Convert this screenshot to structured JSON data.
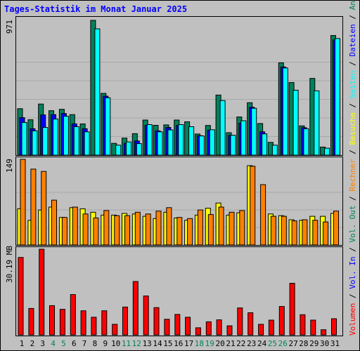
{
  "title": "Tages-Statistik im Monat Januar 2025",
  "colors": {
    "background": "#c0c0c0",
    "title": "#0000ff",
    "anfragen": "#00805c",
    "dateien": "#0000ff",
    "seiten": "#00ffff",
    "besuche": "#ffff00",
    "rechner": "#ff8000",
    "volumen": "#ff0000",
    "weekday_label": "#000000",
    "weekend_label": "#00805c"
  },
  "chart_data": [
    {
      "type": "bar",
      "panel": "top",
      "ymax_label": "971",
      "ylim": [
        0,
        971
      ],
      "categories": [
        "1",
        "2",
        "3",
        "4",
        "5",
        "6",
        "7",
        "8",
        "9",
        "10",
        "11",
        "12",
        "13",
        "14",
        "15",
        "16",
        "17",
        "18",
        "19",
        "20",
        "21",
        "22",
        "23",
        "24",
        "25",
        "26",
        "27",
        "28",
        "29",
        "30",
        "31"
      ],
      "weekend_days": [
        "4",
        "5",
        "11",
        "12",
        "18",
        "19",
        "25",
        "26"
      ],
      "series": [
        {
          "name": "Anfragen",
          "values": [
            335,
            255,
            368,
            320,
            330,
            292,
            225,
            971,
            445,
            85,
            123,
            155,
            253,
            215,
            218,
            253,
            240,
            152,
            214,
            433,
            162,
            275,
            378,
            228,
            92,
            665,
            523,
            211,
            553,
            58,
            862
          ]
        },
        {
          "name": "Dateien",
          "values": [
            270,
            190,
            290,
            292,
            300,
            225,
            190,
            0,
            425,
            0,
            85,
            102,
            215,
            175,
            200,
            215,
            0,
            140,
            180,
            0,
            143,
            230,
            345,
            168,
            0,
            635,
            0,
            198,
            0,
            0,
            830
          ]
        },
        {
          "name": "Seiten",
          "values": [
            235,
            175,
            200,
            260,
            280,
            205,
            168,
            910,
            413,
            72,
            95,
            83,
            220,
            168,
            182,
            220,
            205,
            138,
            183,
            393,
            143,
            248,
            338,
            153,
            72,
            628,
            468,
            190,
            463,
            50,
            840
          ]
        }
      ],
      "legend": [
        "Anfragen",
        "Dateien",
        "Seiten"
      ]
    },
    {
      "type": "bar",
      "panel": "middle",
      "ymax_label": "149",
      "ylim": [
        0,
        149
      ],
      "categories": [
        "1",
        "2",
        "3",
        "4",
        "5",
        "6",
        "7",
        "8",
        "9",
        "10",
        "11",
        "12",
        "13",
        "14",
        "15",
        "16",
        "17",
        "18",
        "19",
        "20",
        "21",
        "22",
        "23",
        "24",
        "25",
        "26",
        "27",
        "28",
        "29",
        "30",
        "31"
      ],
      "series": [
        {
          "name": "Besuche",
          "values": [
            63,
            43,
            61,
            66,
            48,
            65,
            63,
            57,
            52,
            52,
            55,
            54,
            50,
            46,
            57,
            47,
            43,
            52,
            64,
            73,
            52,
            56,
            138,
            0,
            54,
            51,
            44,
            43,
            50,
            50,
            55
          ]
        },
        {
          "name": "Rechner",
          "values": [
            149,
            132,
            128,
            78,
            48,
            66,
            54,
            47,
            60,
            51,
            51,
            57,
            54,
            59,
            65,
            48,
            46,
            61,
            53,
            66,
            57,
            60,
            137,
            105,
            50,
            50,
            42,
            44,
            43,
            40,
            59
          ]
        }
      ],
      "legend": [
        "Besuche",
        "Rechner"
      ]
    },
    {
      "type": "bar",
      "panel": "bottom",
      "ymax_label": "30.19 MB",
      "ylim": [
        0,
        30.19
      ],
      "categories": [
        "1",
        "2",
        "3",
        "4",
        "5",
        "6",
        "7",
        "8",
        "9",
        "10",
        "11",
        "12",
        "13",
        "14",
        "15",
        "16",
        "17",
        "18",
        "19",
        "20",
        "21",
        "22",
        "23",
        "24",
        "25",
        "26",
        "27",
        "28",
        "29",
        "30",
        "31"
      ],
      "series": [
        {
          "name": "Volumen",
          "values": [
            27.3,
            9.3,
            30.2,
            10.3,
            9.0,
            14.2,
            8.5,
            6.2,
            8.5,
            3.7,
            9.8,
            18.8,
            13.7,
            9.6,
            5.5,
            7.2,
            6.2,
            2.5,
            4.6,
            5.3,
            3.2,
            9.5,
            7.8,
            3.7,
            5.2,
            10.0,
            18.2,
            7.1,
            5.2,
            1.8,
            5.7
          ]
        }
      ],
      "legend": [
        "Volumen"
      ]
    }
  ],
  "right_legend": [
    {
      "label": "Volumen",
      "sep": " / "
    },
    {
      "label": "Vol. In",
      "sep": " / "
    },
    {
      "label": "Vol. Out",
      "sep": " / "
    },
    {
      "label": "Rechner",
      "sep": " / "
    },
    {
      "label": "Besuche",
      "sep": " / "
    },
    {
      "label": "Seiten",
      "sep": " / "
    },
    {
      "label": "Dateien",
      "sep": " / "
    },
    {
      "label": "Anfragen",
      "sep": ""
    }
  ]
}
